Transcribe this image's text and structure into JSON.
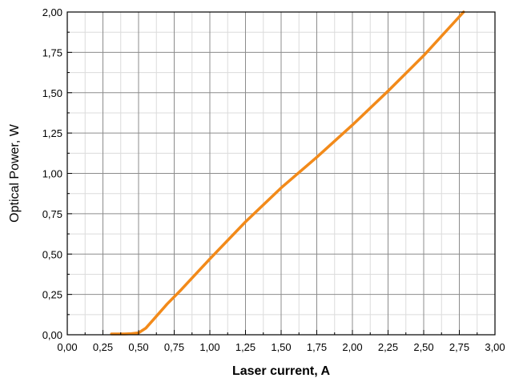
{
  "chart_data": {
    "type": "line",
    "title": "",
    "xlabel": "Laser current, A",
    "ylabel": "Optical Power, W",
    "xlim": [
      0,
      3
    ],
    "ylim": [
      0,
      2
    ],
    "x_ticks": [
      "0,00",
      "0,25",
      "0,50",
      "0,75",
      "1,00",
      "1,25",
      "1,50",
      "1,75",
      "2,00",
      "2,25",
      "2,50",
      "2,75",
      "3,00"
    ],
    "y_ticks": [
      "0,00",
      "0,25",
      "0,50",
      "0,75",
      "1,00",
      "1,25",
      "1,50",
      "1,75",
      "2,00"
    ],
    "grid": true,
    "minor_grid": true,
    "series": [
      {
        "color": "#f28a1a",
        "x": [
          0.31,
          0.4,
          0.45,
          0.5,
          0.55,
          0.6,
          0.7,
          0.8,
          1.0,
          1.25,
          1.5,
          1.75,
          2.0,
          2.25,
          2.5,
          2.78
        ],
        "y": [
          0.005,
          0.005,
          0.007,
          0.012,
          0.04,
          0.09,
          0.19,
          0.28,
          0.47,
          0.7,
          0.91,
          1.1,
          1.3,
          1.51,
          1.73,
          2.0
        ]
      }
    ]
  }
}
